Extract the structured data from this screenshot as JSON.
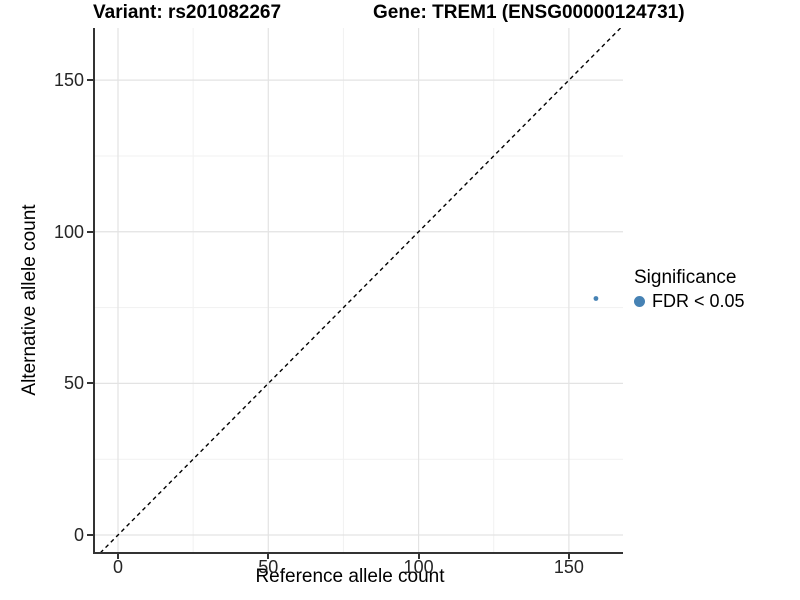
{
  "chart_data": {
    "type": "scatter",
    "subplot_titles": [
      "Variant: rs201082267",
      "Gene: TREM1 (ENSG00000124731)"
    ],
    "xlabel": "Reference allele count",
    "ylabel": "Alternative allele count",
    "x_ticks": [
      0,
      50,
      100,
      150
    ],
    "y_ticks": [
      0,
      50,
      100,
      150
    ],
    "x_minor_ticks": [
      25,
      75,
      125
    ],
    "y_minor_ticks": [
      25,
      75,
      125
    ],
    "xlim": [
      -7.65,
      168
    ],
    "ylim": [
      -5.6,
      167.2
    ],
    "grid": "major+minor",
    "reference_line": {
      "type": "identity",
      "equation": "y = x",
      "style": "dashed",
      "color": "#000000"
    },
    "series": [
      {
        "name": "FDR < 0.05",
        "color": "#4682B4",
        "points": [
          {
            "x": 159,
            "y": 78
          }
        ]
      }
    ],
    "legend": {
      "title": "Significance",
      "position": "right",
      "items": [
        {
          "label": "FDR < 0.05",
          "color": "#4682B4"
        }
      ]
    },
    "colors": {
      "point": "#4682B4",
      "grid_major": "#e3e3e3",
      "grid_minor": "#f1f1f1",
      "axis_line": "#333333",
      "dashed_line": "#000000"
    }
  }
}
